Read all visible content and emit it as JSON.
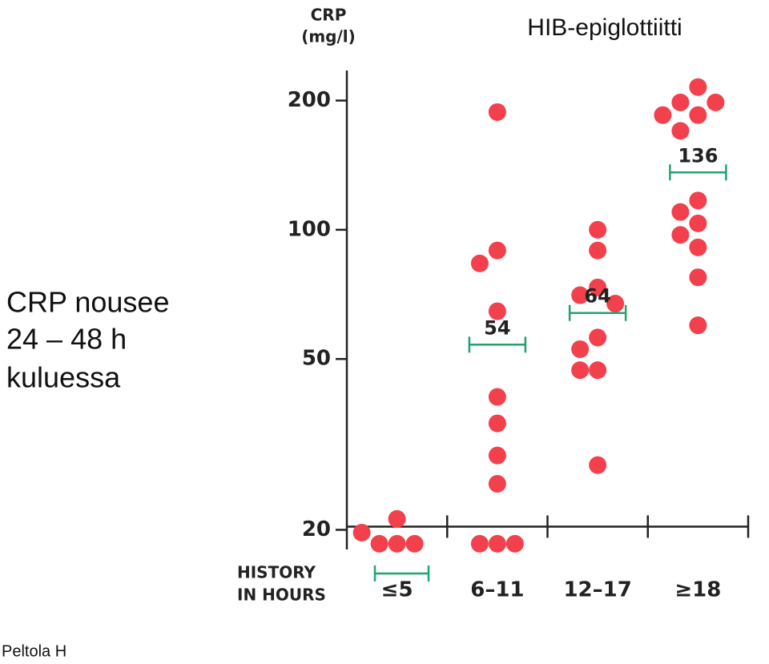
{
  "note": [
    "CRP nousee",
    "24 – 48 h",
    "kuluessa"
  ],
  "source": "Peltola H",
  "chart_data": {
    "type": "scatter",
    "title": "HIB-epiglottiitti",
    "y_label": [
      "CRP",
      "(mg/l)"
    ],
    "x_label": [
      "HISTORY",
      "IN HOURS"
    ],
    "categories": [
      "≤5",
      "6–11",
      "12–17",
      "≥18"
    ],
    "category_colors": [
      "#22a36e",
      "#111111",
      "#111111",
      "#111111"
    ],
    "color": "#f2404c",
    "median_color": "#22a36e",
    "values": [
      [
        18.56,
        18.56,
        18.56,
        19.7,
        21.2
      ],
      [
        188,
        89.5,
        83.5,
        64.6,
        40.8,
        35.4,
        29.8,
        25.6,
        18.56,
        18.56,
        18.56
      ],
      [
        100,
        89.5,
        73.4,
        70.4,
        67.3,
        56.1,
        52.7,
        47.1,
        47.1,
        28.3
      ],
      [
        215,
        198,
        198,
        185,
        185,
        170,
        117,
        110,
        103.5,
        97.3,
        91.0,
        77.5,
        59.9
      ]
    ],
    "medians": [
      null,
      54,
      64,
      136
    ],
    "ylim": [
      18,
      235
    ],
    "log_y": true,
    "yticks": [
      20,
      50,
      100,
      200
    ]
  }
}
